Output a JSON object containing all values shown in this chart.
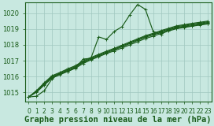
{
  "background_color": "#c8e8e0",
  "grid_color": "#a0c8c0",
  "line_color": "#1a5c1a",
  "marker_color": "#1a5c1a",
  "xlabel": "Graphe pression niveau de la mer (hPa)",
  "xlabel_fontsize": 7.5,
  "xlabel_color": "#1a5c1a",
  "ylabel_ticks": [
    1015,
    1016,
    1017,
    1018,
    1019,
    1020
  ],
  "xlim": [
    -0.5,
    23.5
  ],
  "ylim": [
    1014.4,
    1020.7
  ],
  "xtick_labels": [
    "0",
    "1",
    "2",
    "3",
    "4",
    "5",
    "6",
    "7",
    "8",
    "9",
    "10",
    "11",
    "12",
    "13",
    "14",
    "15",
    "16",
    "17",
    "18",
    "19",
    "20",
    "21",
    "22",
    "23"
  ],
  "series_noisy": [
    1014.7,
    1014.75,
    1015.1,
    1015.85,
    1016.2,
    1016.3,
    1016.55,
    1017.1,
    1017.15,
    1018.5,
    1018.35,
    1018.85,
    1019.15,
    1019.9,
    1020.55,
    1020.25,
    1018.85,
    1018.65,
    1018.95,
    1019.05,
    1019.15,
    1019.2,
    1019.3,
    1019.35
  ],
  "series_smooth": [
    [
      1014.7,
      1015.0,
      1015.45,
      1015.9,
      1016.1,
      1016.32,
      1016.52,
      1016.82,
      1017.05,
      1017.25,
      1017.45,
      1017.62,
      1017.8,
      1018.0,
      1018.2,
      1018.4,
      1018.55,
      1018.72,
      1018.88,
      1019.02,
      1019.1,
      1019.18,
      1019.25,
      1019.32
    ],
    [
      1014.7,
      1015.05,
      1015.5,
      1015.95,
      1016.15,
      1016.38,
      1016.58,
      1016.88,
      1017.1,
      1017.3,
      1017.5,
      1017.68,
      1017.88,
      1018.08,
      1018.28,
      1018.48,
      1018.63,
      1018.8,
      1018.95,
      1019.1,
      1019.18,
      1019.26,
      1019.33,
      1019.4
    ],
    [
      1014.7,
      1015.08,
      1015.55,
      1016.0,
      1016.2,
      1016.43,
      1016.63,
      1016.93,
      1017.15,
      1017.35,
      1017.55,
      1017.73,
      1017.93,
      1018.13,
      1018.33,
      1018.53,
      1018.68,
      1018.85,
      1019.0,
      1019.15,
      1019.23,
      1019.31,
      1019.38,
      1019.45
    ],
    [
      1014.7,
      1015.1,
      1015.6,
      1016.05,
      1016.25,
      1016.48,
      1016.68,
      1016.98,
      1017.2,
      1017.4,
      1017.6,
      1017.78,
      1017.98,
      1018.18,
      1018.38,
      1018.58,
      1018.73,
      1018.9,
      1019.05,
      1019.2,
      1019.28,
      1019.36,
      1019.43,
      1019.5
    ]
  ],
  "tick_fontsize": 6,
  "tick_color": "#1a5c1a",
  "marker_size": 2.5,
  "line_width": 0.85
}
